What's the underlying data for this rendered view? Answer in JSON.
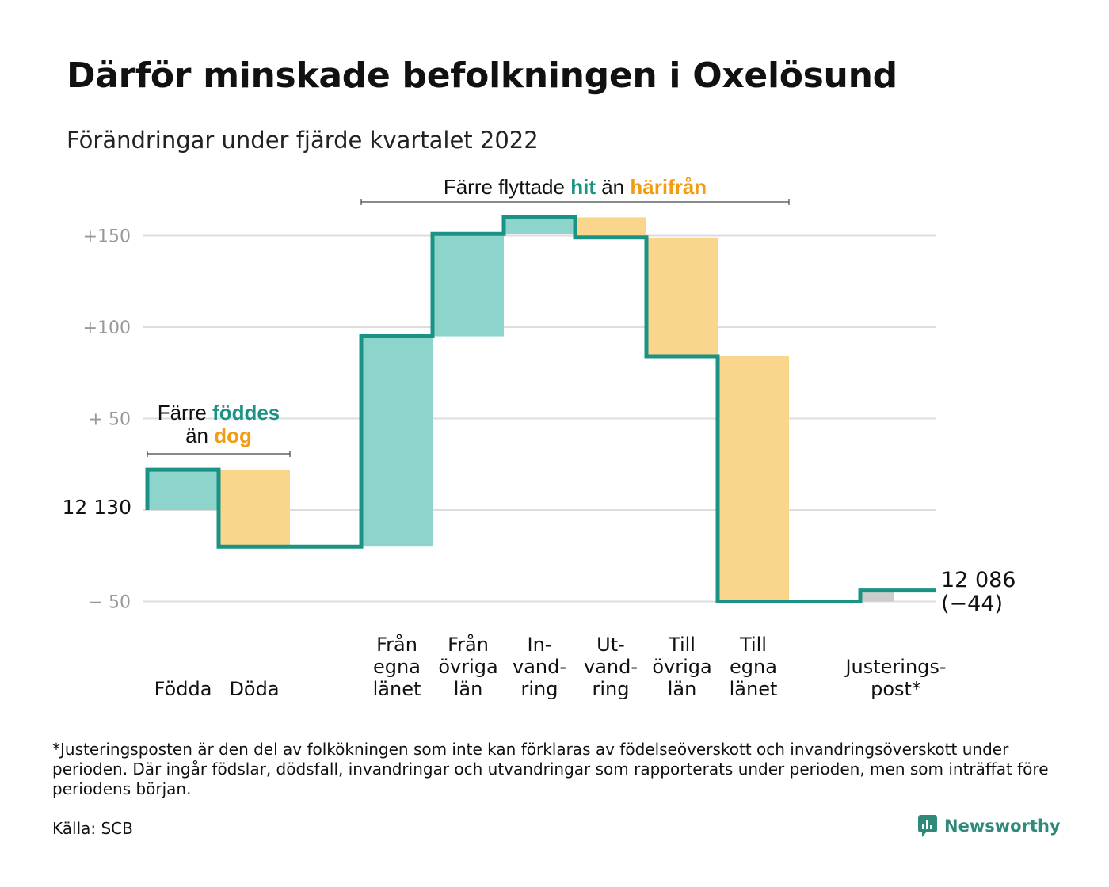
{
  "title": "Därför minskade befolkningen i Oxelösund",
  "subtitle": "Förändringar under fjärde kvartalet 2022",
  "footnote": "*Justeringsposten är den del av folkökningen som inte kan förklaras av födelseöverskott och invandringsöverskott under perioden. Där ingår födslar, dödsfall, invandringar och utvandringar som rapporterats under perioden, men som inträffat före periodens början.",
  "source": "Källa: SCB",
  "logo": {
    "text": "Newsworthy",
    "icon": "newsworthy-chart-bubble-icon"
  },
  "colors": {
    "inflow": "#8dd5cc",
    "outflow": "#f9d68c",
    "adjust": "#cccccc",
    "line": "#1a9384",
    "teal_text": "#1a9384",
    "orange_text": "#f39c12",
    "grid": "#dddddd",
    "tick": "#999999"
  },
  "chart_data": {
    "type": "waterfall",
    "start_value": 12130,
    "start_label": "12 130",
    "end_value": 12086,
    "end_label": "12 086",
    "end_change_label": "(−44)",
    "ylim": [
      -50,
      160
    ],
    "yticks": [
      {
        "value": 150,
        "label": "+150"
      },
      {
        "value": 100,
        "label": "+100"
      },
      {
        "value": 50,
        "label": "+ 50"
      },
      {
        "value": 0,
        "label": ""
      },
      {
        "value": -50,
        "label": "− 50"
      }
    ],
    "steps": [
      {
        "lines": [
          "Födda"
        ],
        "change": 22,
        "kind": "inflow"
      },
      {
        "lines": [
          "Döda"
        ],
        "change": -42,
        "kind": "outflow"
      },
      {
        "lines": [],
        "change": 0,
        "kind": "spacer"
      },
      {
        "lines": [
          "Från",
          "egna",
          "länet"
        ],
        "change": 115,
        "kind": "inflow"
      },
      {
        "lines": [
          "Från",
          "övriga",
          "län"
        ],
        "change": 56,
        "kind": "inflow"
      },
      {
        "lines": [
          "In-",
          "vand-",
          "ring"
        ],
        "change": 9,
        "kind": "inflow"
      },
      {
        "lines": [
          "Ut-",
          "vand-",
          "ring"
        ],
        "change": -11,
        "kind": "outflow"
      },
      {
        "lines": [
          "Till",
          "övriga",
          "län"
        ],
        "change": -65,
        "kind": "outflow"
      },
      {
        "lines": [
          "Till",
          "egna",
          "länet"
        ],
        "change": -134,
        "kind": "outflow"
      },
      {
        "lines": [],
        "change": 0,
        "kind": "spacer"
      },
      {
        "lines": [
          "Justerings-",
          "post*"
        ],
        "change": 6,
        "kind": "adjust"
      }
    ],
    "annotations": [
      {
        "from_step": 0,
        "to_step": 1,
        "parts": [
          [
            [
              "Färre ",
              "plain"
            ],
            [
              "föddes",
              "teal"
            ]
          ],
          [
            [
              "än ",
              "plain"
            ],
            [
              "dog",
              "orange"
            ]
          ]
        ]
      },
      {
        "from_step": 3,
        "to_step": 8,
        "parts": [
          [
            [
              "Färre flyttade ",
              "plain"
            ],
            [
              "hit",
              "teal"
            ],
            [
              " än ",
              "plain"
            ],
            [
              "härifrån",
              "orange"
            ]
          ]
        ]
      }
    ]
  }
}
